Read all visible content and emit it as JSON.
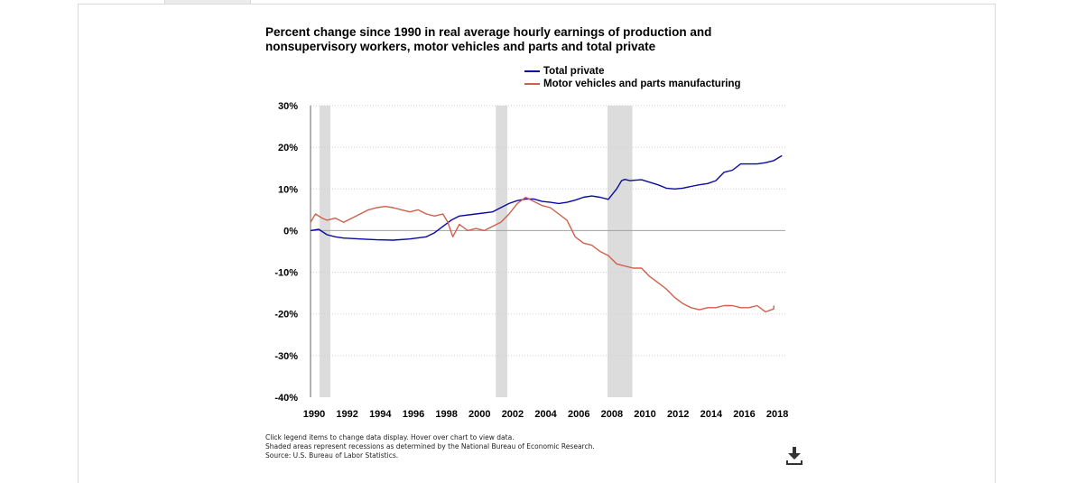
{
  "page": {
    "footnotes": [
      "Click legend items to change data display. Hover over chart to view data.",
      "Shaded areas represent recessions as determined by the National Bureau of Economic Research.",
      "Source: U.S. Bureau of Labor Statistics."
    ],
    "download_icon": "download-icon"
  },
  "colors": {
    "total_private": "#0a0aa0",
    "motor_vehicles": "#d0604c",
    "recession": "#dcdcdc",
    "zero_line": "#a0a0a0",
    "grid": "#cfcfcf"
  },
  "chart_data": {
    "type": "line",
    "title": "Percent change since 1990 in real average hourly earnings of production and nonsupervisory workers, motor vehicles and parts and total private",
    "xlabel": "",
    "ylabel": "",
    "xlim": [
      1990,
      2018.7
    ],
    "ylim": [
      -40,
      30
    ],
    "y_ticks": [
      30,
      20,
      10,
      0,
      -10,
      -20,
      -30,
      -40
    ],
    "y_tick_labels": [
      "30%",
      "20%",
      "10%",
      "0%",
      "-10%",
      "-20%",
      "-30%",
      "-40%"
    ],
    "x_ticks": [
      1990,
      1992,
      1994,
      1996,
      1998,
      2000,
      2002,
      2004,
      2006,
      2008,
      2010,
      2012,
      2014,
      2016,
      2018
    ],
    "x_tick_labels": [
      "1990",
      "1992",
      "1994",
      "1996",
      "1998",
      "2000",
      "2002",
      "2004",
      "2006",
      "2008",
      "2010",
      "2012",
      "2014",
      "2016",
      "2018"
    ],
    "grid": "horizontal dotted",
    "legend_placement": "top-right",
    "recessions": [
      [
        1990.55,
        1991.2
      ],
      [
        2001.2,
        2001.9
      ],
      [
        2007.95,
        2009.45
      ]
    ],
    "series": [
      {
        "name": "Total private",
        "x": [
          1990,
          1990.5,
          1991,
          1991.5,
          1992,
          1993,
          1994,
          1995,
          1996,
          1997,
          1997.5,
          1998,
          1998.5,
          1999,
          2000,
          2001,
          2001.5,
          2002,
          2002.5,
          2003,
          2003.5,
          2004,
          2004.5,
          2005,
          2005.5,
          2006,
          2006.5,
          2007,
          2007.5,
          2008,
          2008.5,
          2008.8,
          2009,
          2009.3,
          2010,
          2011,
          2011.5,
          2012,
          2012.5,
          2013,
          2013.5,
          2014,
          2014.5,
          2015,
          2015.5,
          2016,
          2016.5,
          2017,
          2017.5,
          2018,
          2018.5
        ],
        "values": [
          0,
          0.3,
          -1,
          -1.5,
          -1.8,
          -2.0,
          -2.2,
          -2.3,
          -2.0,
          -1.5,
          -0.5,
          1,
          2.5,
          3.5,
          4,
          4.5,
          5.5,
          6.5,
          7.2,
          7.6,
          7.6,
          7,
          6.8,
          6.5,
          6.8,
          7.3,
          8,
          8.3,
          8,
          7.5,
          10,
          12,
          12.3,
          12,
          12.2,
          11,
          10.2,
          10,
          10.2,
          10.6,
          11,
          11.3,
          12,
          14,
          14.5,
          16,
          16,
          16,
          16.3,
          16.8,
          18
        ]
      },
      {
        "name": "Motor vehicles and parts manufacturing",
        "x": [
          1990,
          1990.3,
          1990.7,
          1991,
          1991.5,
          1992,
          1992.5,
          1993,
          1993.5,
          1994,
          1994.5,
          1995,
          1995.5,
          1996,
          1996.5,
          1997,
          1997.5,
          1998,
          1998.3,
          1998.6,
          1999,
          1999.5,
          2000,
          2000.5,
          2001,
          2001.5,
          2002,
          2002.5,
          2003,
          2003.5,
          2004,
          2004.5,
          2005,
          2005.5,
          2006,
          2006.5,
          2007,
          2007.5,
          2008,
          2008.5,
          2009,
          2009.5,
          2010,
          2010.5,
          2011,
          2011.5,
          2012,
          2012.5,
          2013,
          2013.5,
          2014,
          2014.5,
          2015,
          2015.5,
          2016,
          2016.5,
          2017,
          2017.5,
          2018,
          2018
        ],
        "values": [
          2,
          4,
          3,
          2.5,
          3,
          2,
          3,
          4,
          5,
          5.5,
          5.8,
          5.5,
          5,
          4.5,
          5,
          4,
          3.5,
          4,
          2,
          -1.5,
          1.5,
          0,
          0.5,
          0,
          1,
          2,
          4,
          6.5,
          8,
          7,
          6,
          5.5,
          4,
          2.5,
          -1.5,
          -3,
          -3.5,
          -5,
          -6,
          -8,
          -8.5,
          -9,
          -9,
          -11,
          -12.5,
          -14,
          -16,
          -17.5,
          -18.5,
          -19,
          -18.5,
          -18.5,
          -18,
          -18,
          -18.5,
          -18.5,
          -18,
          -19.5,
          -18.8,
          -18
        ]
      }
    ]
  }
}
